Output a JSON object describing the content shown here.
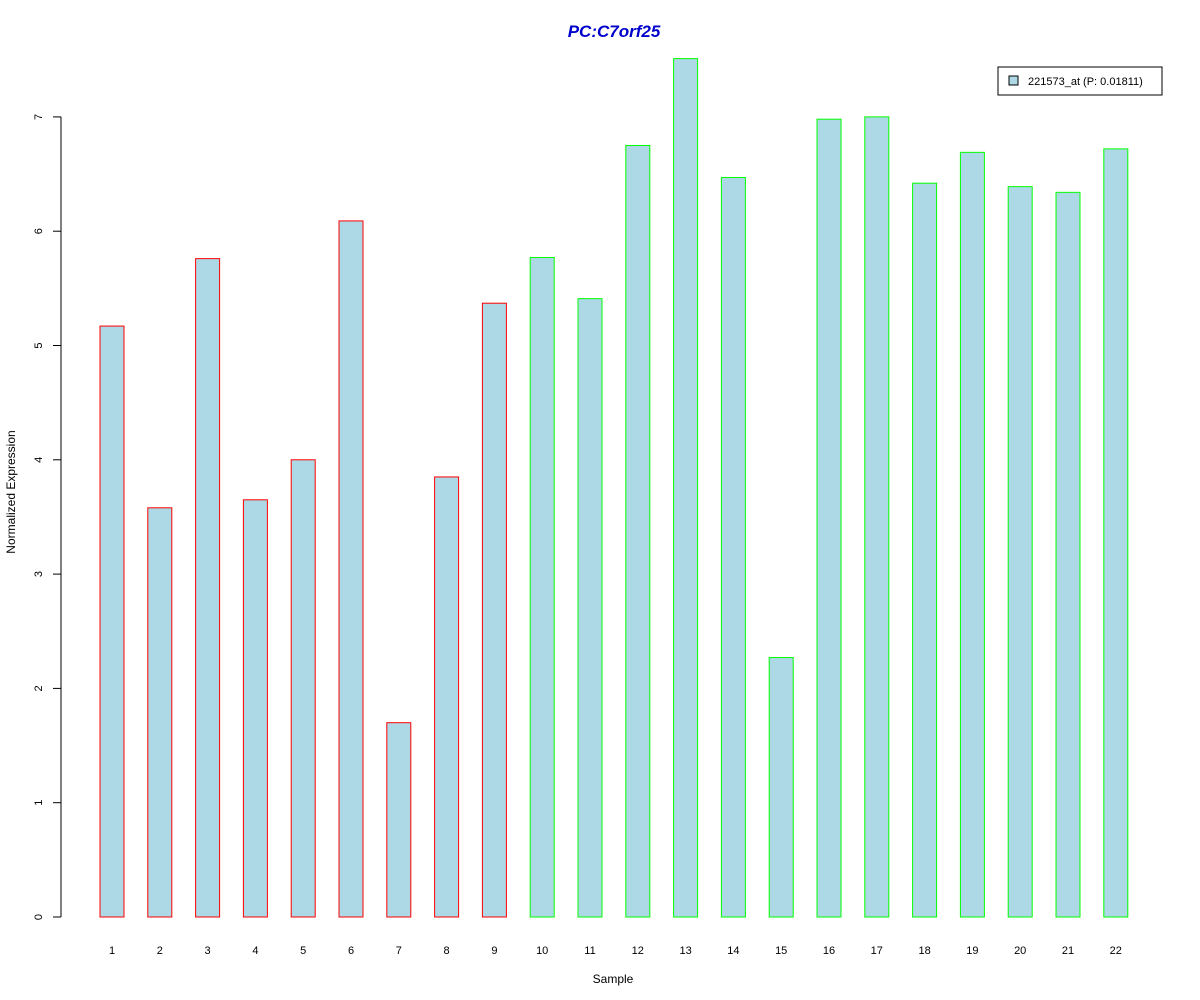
{
  "colors": {
    "title": "#0000CD",
    "bar_fill": "#ADD8E6",
    "group1_border": "#FF0000",
    "group2_border": "#00FF00",
    "axis": "#000000",
    "background": "#FFFFFF"
  },
  "chart_data": {
    "type": "bar",
    "title": "PC:C7orf25",
    "xlabel": "Sample",
    "ylabel": "Normalized Expression",
    "ylim": [
      0,
      7.5
    ],
    "yticks": [
      "0",
      "1",
      "2",
      "3",
      "4",
      "5",
      "6",
      "7"
    ],
    "categories": [
      "1",
      "2",
      "3",
      "4",
      "5",
      "6",
      "7",
      "8",
      "9",
      "10",
      "11",
      "12",
      "13",
      "14",
      "15",
      "16",
      "17",
      "18",
      "19",
      "20",
      "21",
      "22"
    ],
    "series": [
      {
        "name": "221573_at (P: 0.01811)",
        "values": [
          5.17,
          3.58,
          5.76,
          3.65,
          4.0,
          6.09,
          1.7,
          3.85,
          5.37,
          5.77,
          5.41,
          6.75,
          7.51,
          6.47,
          2.27,
          6.98,
          7.0,
          6.42,
          6.69,
          6.39,
          6.34,
          6.72
        ]
      }
    ],
    "bar_groups": [
      "group1",
      "group1",
      "group1",
      "group1",
      "group1",
      "group1",
      "group1",
      "group1",
      "group1",
      "group2",
      "group2",
      "group2",
      "group2",
      "group2",
      "group2",
      "group2",
      "group2",
      "group2",
      "group2",
      "group2",
      "group2",
      "group2"
    ],
    "legend": {
      "position": "top-right",
      "label": "221573_at (P: 0.01811)"
    },
    "grid": false
  }
}
